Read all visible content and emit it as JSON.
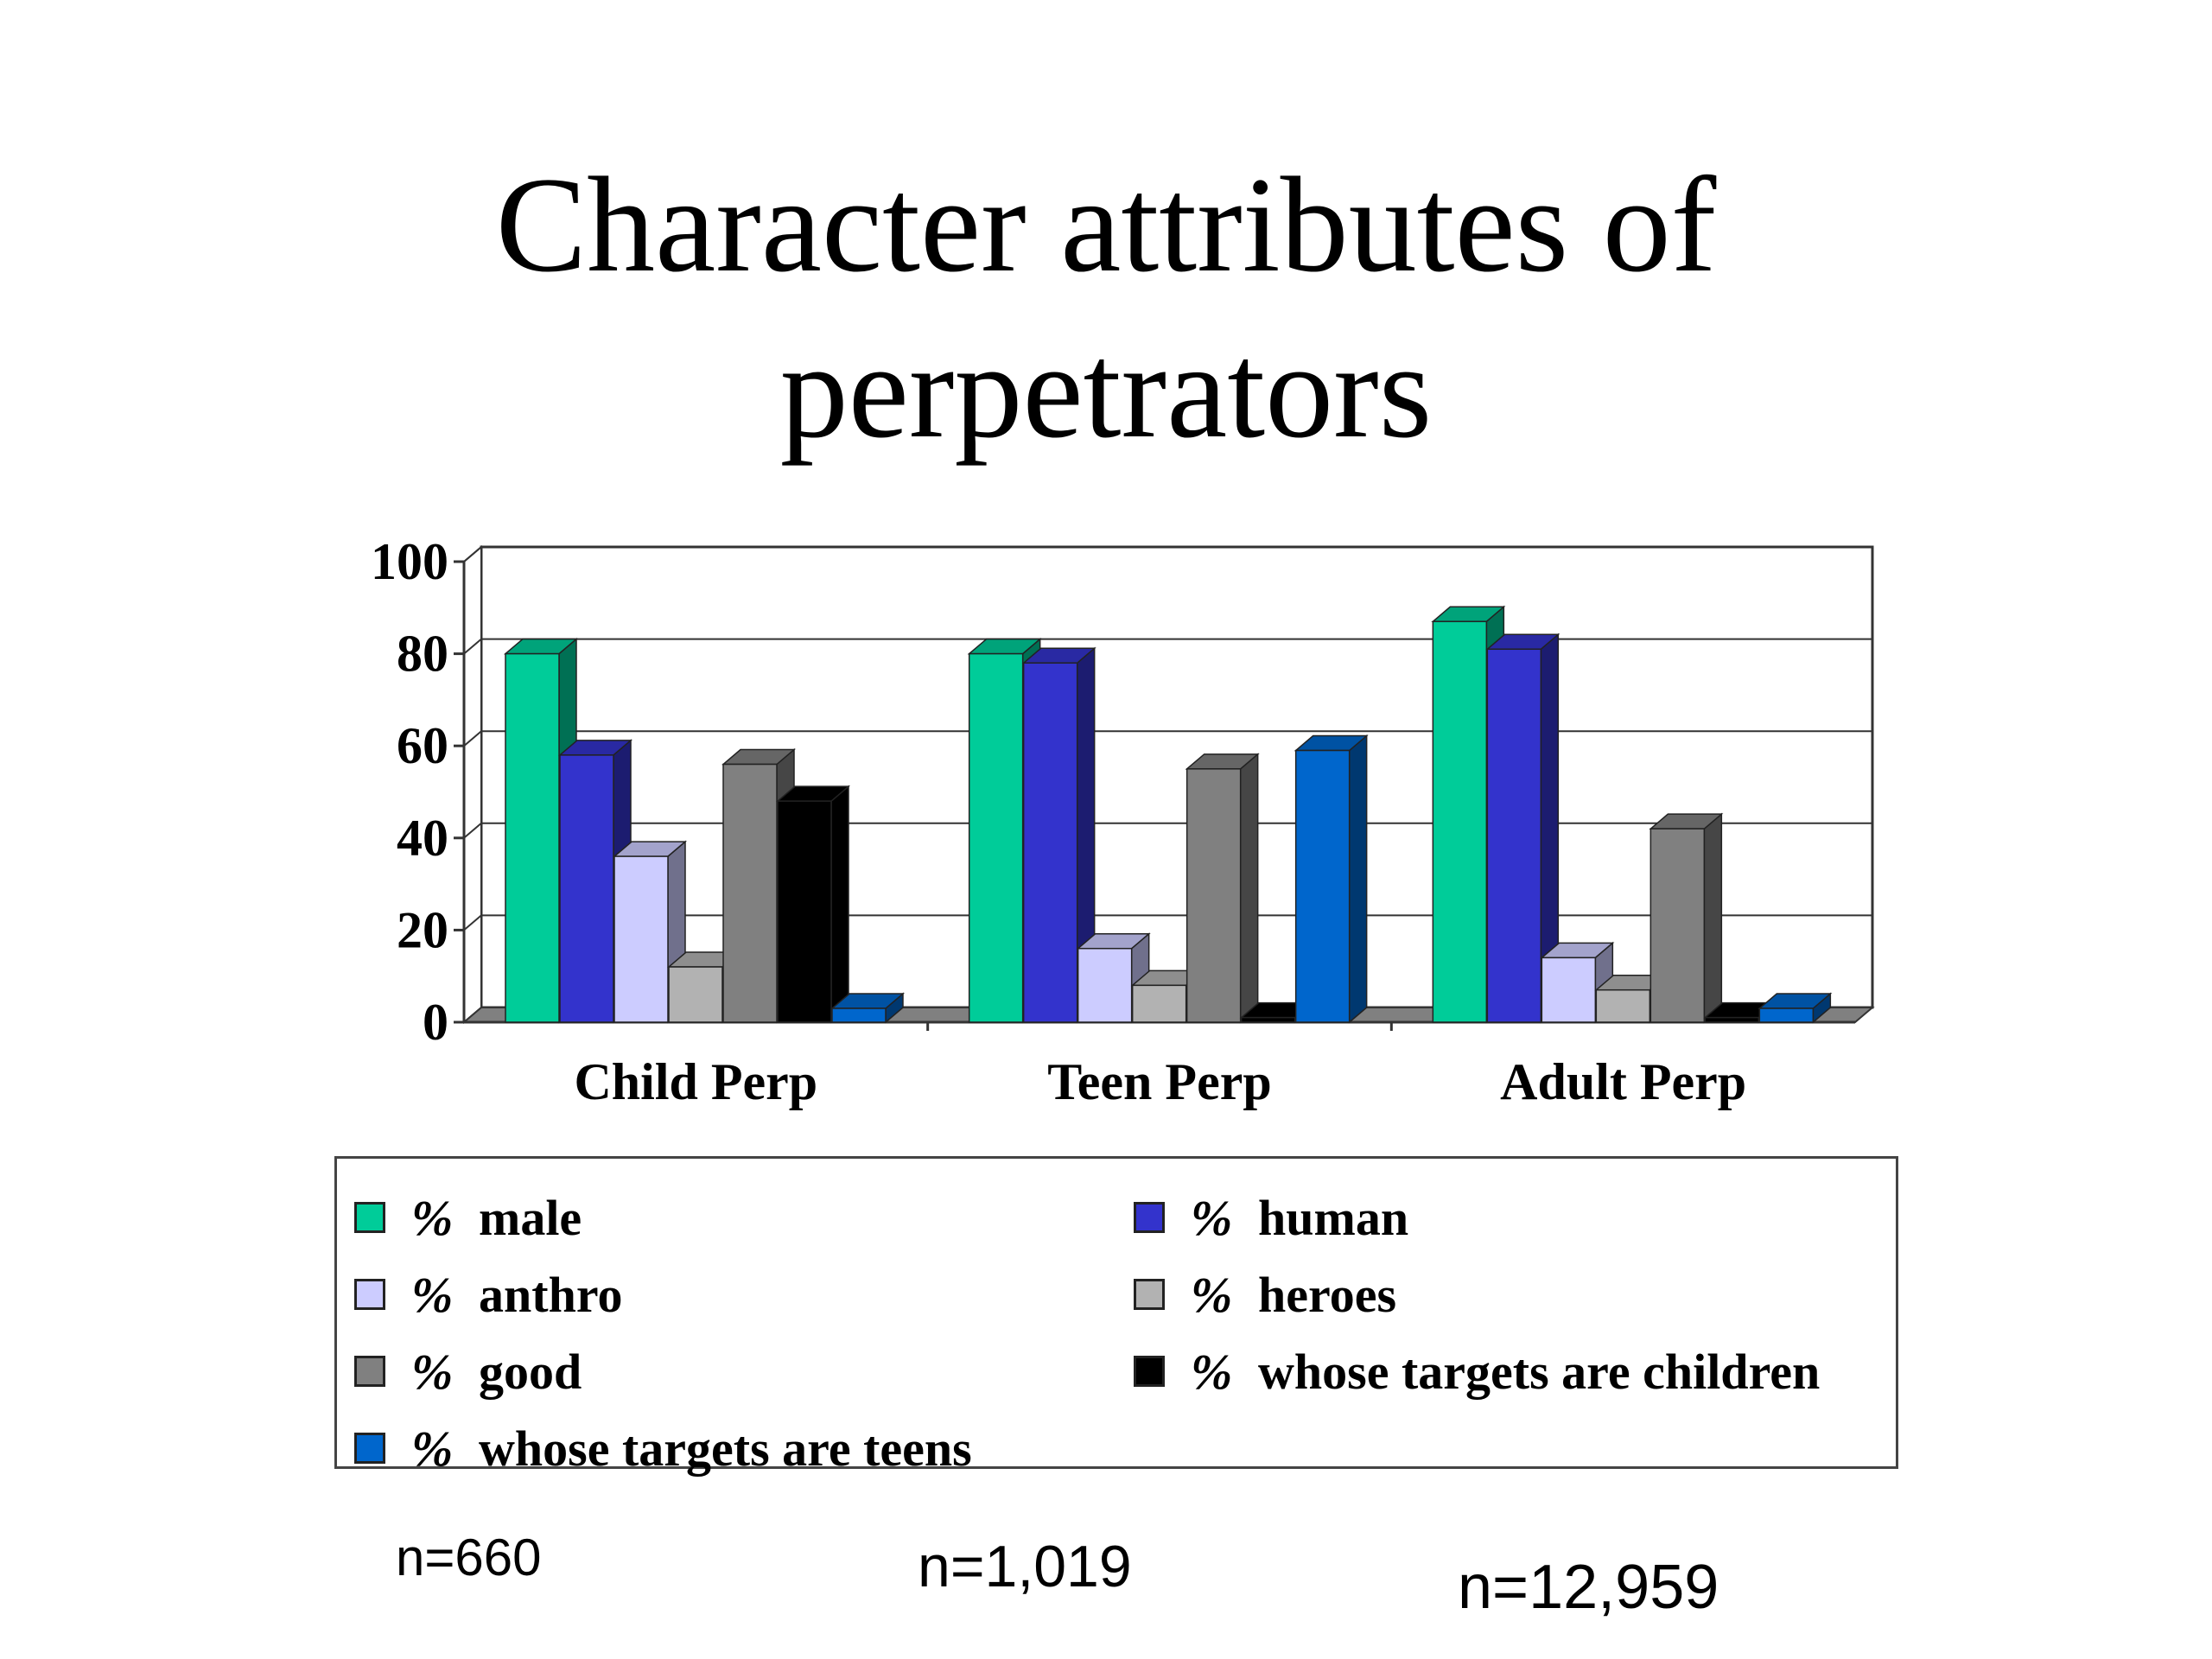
{
  "title_lines": [
    "Character attributes of",
    "perpetrators"
  ],
  "chart_data": {
    "type": "bar",
    "style": "3d-clustered",
    "title": "Character attributes of perpetrators",
    "categories": [
      "Child Perp",
      "Teen Perp",
      "Adult Perp"
    ],
    "ylim": [
      0,
      100
    ],
    "yticks": [
      0,
      20,
      40,
      60,
      80,
      100
    ],
    "grid": true,
    "legend_position": "bottom",
    "series": [
      {
        "name": "male",
        "color": "#00CC99",
        "values": [
          80,
          80,
          87
        ]
      },
      {
        "name": "human",
        "color": "#3333CC",
        "values": [
          58,
          78,
          81
        ]
      },
      {
        "name": "anthro",
        "color": "#CCCCFF",
        "values": [
          36,
          16,
          14
        ]
      },
      {
        "name": "heroes",
        "color": "#B2B2B2",
        "values": [
          12,
          8,
          7
        ]
      },
      {
        "name": "good",
        "color": "#808080",
        "values": [
          56,
          55,
          42
        ]
      },
      {
        "name": "whose targets are children",
        "color": "#000000",
        "values": [
          48,
          1,
          1
        ]
      },
      {
        "name": "whose targets are teens",
        "color": "#0066CC",
        "values": [
          3,
          59,
          3
        ]
      }
    ]
  },
  "legend": {
    "pct_symbol": "%",
    "items": [
      {
        "label": "male",
        "color": "#00CC99"
      },
      {
        "label": "human",
        "color": "#3333CC"
      },
      {
        "label": "anthro",
        "color": "#CCCCFF"
      },
      {
        "label": "heroes",
        "color": "#B2B2B2"
      },
      {
        "label": "good",
        "color": "#808080"
      },
      {
        "label": "whose targets are children",
        "color": "#000000"
      },
      {
        "label": "whose targets are teens",
        "color": "#0066CC"
      }
    ]
  },
  "sample_sizes": [
    "n=660",
    "n=1,019",
    "n=12,959"
  ]
}
